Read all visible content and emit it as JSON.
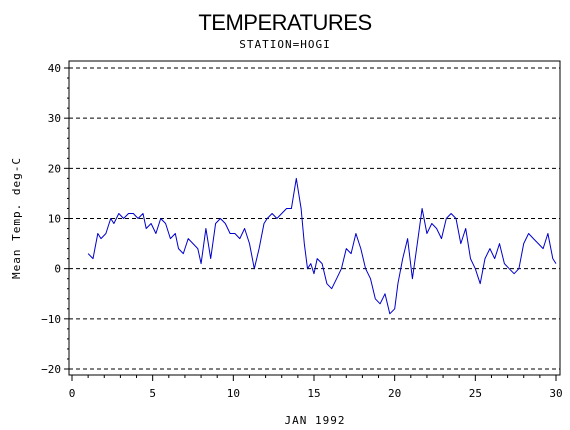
{
  "chart_data": {
    "type": "line",
    "title": "TEMPERATURES",
    "subtitle": "STATION=HOGI",
    "xlabel": "JAN 1992",
    "ylabel": "Mean Temp. deg-C",
    "xlim": [
      0,
      30
    ],
    "ylim": [
      -20,
      40
    ],
    "x_ticks": [
      0,
      5,
      10,
      15,
      20,
      25,
      30
    ],
    "y_ticks": [
      -20,
      -10,
      0,
      10,
      20,
      30,
      40
    ],
    "grid": "horizontal dashed",
    "line_color": "#0000cc",
    "series": [
      {
        "x": [
          1.0,
          1.3,
          1.6,
          1.8,
          2.1,
          2.4,
          2.6,
          2.9,
          3.2,
          3.5,
          3.8,
          4.1,
          4.4,
          4.6,
          4.9,
          5.2,
          5.5,
          5.8,
          6.1,
          6.4,
          6.6,
          6.9,
          7.2,
          7.5,
          7.8,
          8.0,
          8.3,
          8.6,
          8.9,
          9.2,
          9.5,
          9.8,
          10.1,
          10.4,
          10.7,
          11.0,
          11.3,
          11.6,
          11.9,
          12.1,
          12.4,
          12.7,
          13.0,
          13.3,
          13.6,
          13.9,
          14.2,
          14.4,
          14.6,
          14.8,
          15.0,
          15.2,
          15.5,
          15.8,
          16.1,
          16.4,
          16.7,
          17.0,
          17.3,
          17.6,
          17.9,
          18.2,
          18.5,
          18.8,
          19.1,
          19.4,
          19.7,
          20.0,
          20.2,
          20.5,
          20.8,
          21.1,
          21.4,
          21.7,
          22.0,
          22.3,
          22.6,
          22.9,
          23.2,
          23.5,
          23.8,
          24.1,
          24.4,
          24.7,
          25.0,
          25.3,
          25.6,
          25.9,
          26.2,
          26.5,
          26.8,
          27.1,
          27.4,
          27.7,
          28.0,
          28.3,
          28.6,
          28.9,
          29.2,
          29.5,
          29.8,
          30.0
        ],
        "values": [
          3,
          2,
          7,
          6,
          7,
          10,
          9,
          11,
          10,
          11,
          11,
          10,
          11,
          8,
          9,
          7,
          10,
          9,
          6,
          7,
          4,
          3,
          6,
          5,
          4,
          1,
          8,
          2,
          9,
          10,
          9,
          7,
          7,
          6,
          8,
          5,
          0,
          4,
          9,
          10,
          11,
          10,
          11,
          12,
          12,
          18,
          12,
          5,
          0,
          1,
          -1,
          2,
          1,
          -3,
          -4,
          -2,
          0,
          4,
          3,
          7,
          4,
          0,
          -2,
          -6,
          -7,
          -5,
          -9,
          -8,
          -3,
          2,
          6,
          -2,
          5,
          12,
          7,
          9,
          8,
          6,
          10,
          11,
          10,
          5,
          8,
          2,
          0,
          -3,
          2,
          4,
          2,
          5,
          1,
          0,
          -1,
          0,
          5,
          7,
          6,
          5,
          4,
          7,
          2,
          1
        ]
      }
    ]
  }
}
